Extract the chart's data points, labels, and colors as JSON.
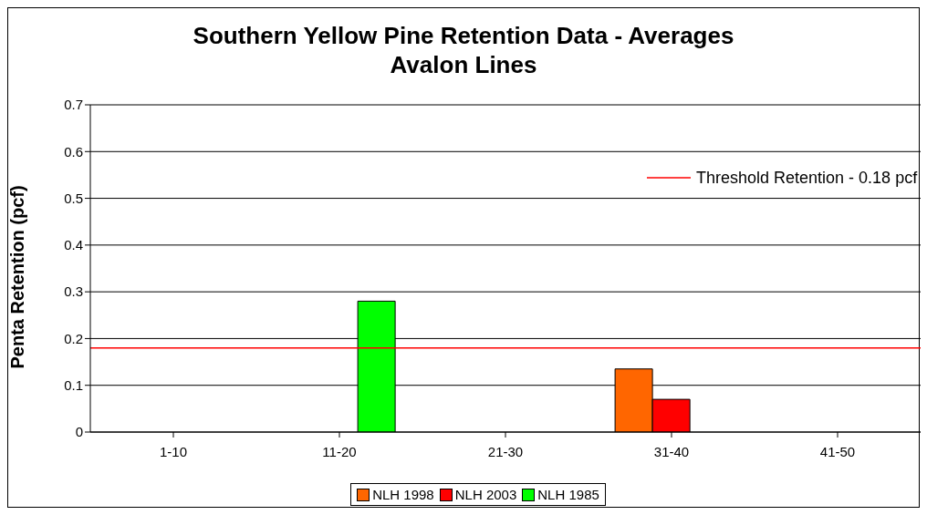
{
  "chart_data": {
    "type": "bar",
    "title": "Southern Yellow Pine Retention Data - Averages Avalon Lines",
    "ylabel": "Penta Retention (pcf)",
    "categories": [
      "1-10",
      "11-20",
      "21-30",
      "31-40",
      "41-50"
    ],
    "series": [
      {
        "name": "NLH 1998",
        "color": "#ff6600",
        "values": [
          null,
          null,
          null,
          0.135,
          null
        ]
      },
      {
        "name": "NLH 2003",
        "color": "#ff0000",
        "values": [
          null,
          null,
          null,
          0.07,
          null
        ]
      },
      {
        "name": "NLH 1985",
        "color": "#00ff00",
        "values": [
          null,
          0.28,
          null,
          null,
          null
        ]
      }
    ],
    "ylim": [
      0,
      0.7
    ],
    "yticks": [
      0,
      0.1,
      0.2,
      0.3,
      0.4,
      0.5,
      0.6,
      0.7
    ],
    "grid": "y",
    "legend": "bottom",
    "ref_lines": [
      {
        "axis": "y",
        "value": 0.18,
        "label": "Threshold Retention - 0.18 pcf",
        "color": "#ff0000"
      }
    ]
  }
}
